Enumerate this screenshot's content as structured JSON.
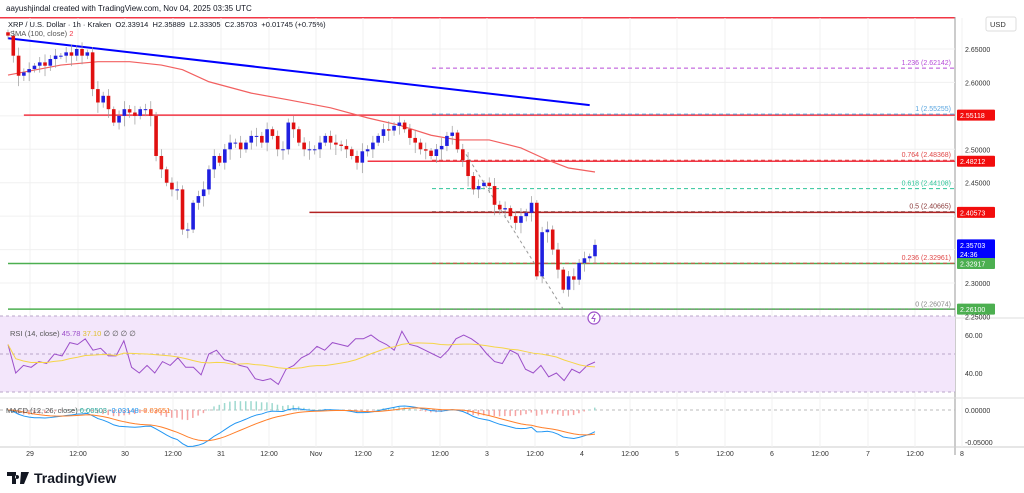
{
  "header": {
    "credit": "aayushjindal created with TradingView.com, Nov 04, 2025 03:35 UTC"
  },
  "legend": {
    "symbol": "XRP / U.S. Dollar · 1h · Kraken",
    "open": "O2.33914",
    "high": "H2.35889",
    "low": "L2.33305",
    "close": "C2.35703",
    "change": "+0.01745 (+0.75%)"
  },
  "sma": {
    "label": "SMA (100, close)",
    "value": "2"
  },
  "rsi": {
    "label": "RSI (14, close)",
    "value": "45.78",
    "ma": "37.10",
    "extra": "∅ ∅ ∅ ∅"
  },
  "macd": {
    "label": "MACD (12, 26, close)",
    "hist": "0.00503",
    "macd": "-0.03148",
    "signal": "-0.03651"
  },
  "axis": {
    "currency": "USD",
    "price_ticks": [
      "2.65000",
      "2.60000",
      "2.50000",
      "2.45000",
      "2.30000",
      "2.25000"
    ],
    "rsi_ticks": [
      "60.00",
      "40.00"
    ],
    "macd_ticks": [
      "0.00000",
      "-0.05000"
    ],
    "time_ticks": [
      "29",
      "12:00",
      "30",
      "12:00",
      "31",
      "12:00",
      "Nov",
      "12:00",
      "2",
      "12:00",
      "3",
      "12:00",
      "4",
      "12:00",
      "5",
      "12:00",
      "6",
      "12:00",
      "7",
      "12:00",
      "8"
    ]
  },
  "price_badges": [
    {
      "value": "2.55118",
      "color": "#f20d0d"
    },
    {
      "value": "2.48212",
      "color": "#f20d0d"
    },
    {
      "value": "2.40573",
      "color": "#f20d0d"
    },
    {
      "value": "2.35703",
      "sub": "24:36",
      "color": "#0000ff"
    },
    {
      "value": "2.32917",
      "color": "#4caf50"
    },
    {
      "value": "2.26100",
      "color": "#4caf50"
    }
  ],
  "fib": [
    {
      "label": "1.236 (2.62142)",
      "price": 2.62142,
      "color": "#b74bd8"
    },
    {
      "label": "1 (2.55255)",
      "price": 2.55255,
      "color": "#5aa6e0"
    },
    {
      "label": "0.764 (2.48368)",
      "price": 2.48368,
      "color": "#e04848"
    },
    {
      "label": "0.618 (2.44108)",
      "price": 2.44108,
      "color": "#2fc59a"
    },
    {
      "label": "0.5 (2.40665)",
      "price": 2.40665,
      "color": "#8b3a3a"
    },
    {
      "label": "0.236 (2.32961)",
      "price": 2.32961,
      "color": "#e04848"
    },
    {
      "label": "0 (2.26074)",
      "price": 2.26074,
      "color": "#888888"
    }
  ],
  "brand": "TradingView",
  "colors": {
    "up": "#2020e0",
    "down": "#e01010",
    "sma": "#f26060",
    "trend": "#0000ff",
    "rsi": "#9c4fc9",
    "rsi_ma": "#f5d547",
    "macd": "#2196f3",
    "signal": "#ff7f2a"
  },
  "chart_data": {
    "type": "candlestick",
    "timeframe": "1h",
    "ylim": [
      2.24,
      2.69
    ],
    "closes": [
      2.67,
      2.64,
      2.61,
      2.615,
      2.62,
      2.625,
      2.63,
      2.625,
      2.635,
      2.64,
      2.64,
      2.645,
      2.64,
      2.65,
      2.64,
      2.645,
      2.59,
      2.57,
      2.58,
      2.56,
      2.54,
      2.55,
      2.56,
      2.555,
      2.55,
      2.56,
      2.56,
      2.55,
      2.49,
      2.47,
      2.45,
      2.44,
      2.44,
      2.38,
      2.38,
      2.42,
      2.43,
      2.44,
      2.47,
      2.49,
      2.48,
      2.5,
      2.51,
      2.51,
      2.5,
      2.51,
      2.52,
      2.52,
      2.51,
      2.53,
      2.52,
      2.5,
      2.5,
      2.54,
      2.53,
      2.51,
      2.5,
      2.5,
      2.5,
      2.51,
      2.52,
      2.51,
      2.507,
      2.505,
      2.5,
      2.49,
      2.48,
      2.497,
      2.5,
      2.51,
      2.52,
      2.53,
      2.528,
      2.535,
      2.54,
      2.53,
      2.517,
      2.51,
      2.5,
      2.498,
      2.49,
      2.5,
      2.505,
      2.52,
      2.525,
      2.5,
      2.484,
      2.46,
      2.44,
      2.445,
      2.45,
      2.445,
      2.417,
      2.41,
      2.412,
      2.4,
      2.39,
      2.4,
      2.405,
      2.42,
      2.31,
      2.376,
      2.38,
      2.35,
      2.32,
      2.29,
      2.31,
      2.305,
      2.33,
      2.337,
      2.34,
      2.357
    ],
    "sma_100": [
      [
        0,
        2.611
      ],
      [
        10,
        2.626
      ],
      [
        17,
        2.631
      ],
      [
        23,
        2.631
      ],
      [
        29,
        2.626
      ],
      [
        33,
        2.619
      ],
      [
        38,
        2.601
      ],
      [
        46,
        2.584
      ],
      [
        53,
        2.574
      ],
      [
        61,
        2.562
      ],
      [
        68,
        2.547
      ],
      [
        74,
        2.536
      ],
      [
        80,
        2.521
      ],
      [
        85,
        2.514
      ],
      [
        91,
        2.514
      ],
      [
        97,
        2.502
      ],
      [
        102,
        2.484
      ],
      [
        106,
        2.472
      ],
      [
        111,
        2.466
      ]
    ],
    "trendline": [
      [
        0,
        2.666
      ],
      [
        110,
        2.566
      ]
    ],
    "levels": [
      {
        "price": 2.55118,
        "from": 3,
        "color": "#f23645"
      },
      {
        "price": 2.48212,
        "from": 68,
        "color": "#f23645"
      },
      {
        "price": 2.40573,
        "from": 57,
        "color": "#b22222"
      },
      {
        "price": 2.32917,
        "from": 0,
        "color": "#4caf50"
      },
      {
        "price": 2.261,
        "from": 0,
        "color": "#4caf50"
      }
    ],
    "fib_from": [
      86,
      2.5
    ],
    "fib_to": [
      105,
      2.2607
    ],
    "rsi": [
      55,
      40,
      44,
      43,
      46,
      45,
      50,
      49,
      56,
      55,
      58,
      52,
      53,
      49,
      49,
      57,
      43,
      40,
      44,
      40,
      46,
      44,
      48,
      43,
      43,
      39,
      50,
      52,
      47,
      46,
      44,
      43,
      37,
      36,
      37,
      34,
      42,
      44,
      48,
      50,
      54,
      52,
      56,
      55,
      54,
      58,
      58,
      60,
      57,
      55,
      52,
      62,
      55,
      54,
      52,
      50,
      48,
      52,
      58,
      60,
      58,
      55,
      50,
      46,
      45,
      52,
      50,
      42,
      40,
      44,
      38,
      40,
      36,
      42,
      40,
      44,
      45.78
    ],
    "rsi_bands": [
      70,
      50,
      30
    ]
  }
}
